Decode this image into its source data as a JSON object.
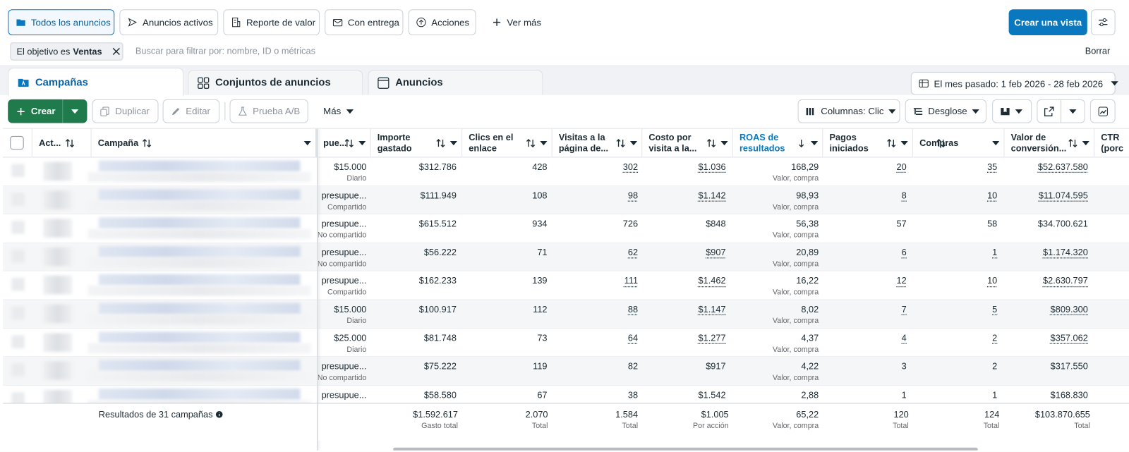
{
  "view_tabs": [
    "Todos los anuncios",
    "Anuncios activos",
    "Reporte de valor",
    "Con entrega",
    "Acciones",
    "Ver más"
  ],
  "create_view": "Crear una vista",
  "filter": {
    "chip_prefix": "El objetivo es",
    "chip_value": "Ventas",
    "placeholder": "Buscar para filtrar por: nombre, ID o métricas",
    "clear": "Borrar"
  },
  "level_tabs": [
    "Campañas",
    "Conjuntos de anuncios",
    "Anuncios"
  ],
  "date_range": "El mes pasado: 1 feb 2026 - 28 feb 2026",
  "toolbar": {
    "create": "Crear",
    "duplicate": "Duplicar",
    "edit": "Editar",
    "ab_test": "Prueba A/B",
    "more": "Más",
    "columns": "Columnas: Clic",
    "breakdown": "Desglose"
  },
  "table": {
    "columns": [
      "Act...",
      "Campaña",
      "pue...",
      "Importe gastado",
      "Clics en el enlace",
      "Visitas a la página de...",
      "Costo por visita a la...",
      "ROAS de resultados",
      "Pagos iniciados",
      "Compras",
      "Valor de conversión...",
      "CTR (porc"
    ],
    "rows": [
      {
        "budget": "$15.000",
        "budget_sub": "Diario",
        "spend": "$312.786",
        "clicks": "428",
        "visits": "302",
        "cost": "$1.036",
        "roas": "168,29",
        "roas_sub": "Valor, compra",
        "payments": "20",
        "purchases": "35",
        "value": "$52.637.580",
        "linked": true
      },
      {
        "budget": "presupue...",
        "budget_sub": "Compartido",
        "spend": "$111.949",
        "clicks": "108",
        "visits": "98",
        "cost": "$1.142",
        "roas": "98,93",
        "roas_sub": "Valor, compra",
        "payments": "8",
        "purchases": "10",
        "value": "$11.074.595",
        "linked": true
      },
      {
        "budget": "presupue...",
        "budget_sub": "No compartido",
        "spend": "$615.512",
        "clicks": "934",
        "visits": "726",
        "cost": "$848",
        "roas": "56,38",
        "roas_sub": "Valor, compra",
        "payments": "57",
        "purchases": "58",
        "value": "$34.700.621",
        "linked": false
      },
      {
        "budget": "presupue...",
        "budget_sub": "No compartido",
        "spend": "$56.222",
        "clicks": "71",
        "visits": "62",
        "cost": "$907",
        "roas": "20,89",
        "roas_sub": "Valor, compra",
        "payments": "6",
        "purchases": "1",
        "value": "$1.174.320",
        "linked": true
      },
      {
        "budget": "presupue...",
        "budget_sub": "Compartido",
        "spend": "$162.233",
        "clicks": "139",
        "visits": "111",
        "cost": "$1.462",
        "roas": "16,22",
        "roas_sub": "Valor, compra",
        "payments": "12",
        "purchases": "10",
        "value": "$2.630.797",
        "linked": true
      },
      {
        "budget": "$15.000",
        "budget_sub": "Diario",
        "spend": "$100.917",
        "clicks": "112",
        "visits": "88",
        "cost": "$1.147",
        "roas": "8,02",
        "roas_sub": "Valor, compra",
        "payments": "7",
        "purchases": "5",
        "value": "$809.300",
        "linked": true
      },
      {
        "budget": "$25.000",
        "budget_sub": "Diario",
        "spend": "$81.748",
        "clicks": "73",
        "visits": "64",
        "cost": "$1.277",
        "roas": "4,37",
        "roas_sub": "Valor, compra",
        "payments": "4",
        "purchases": "2",
        "value": "$357.062",
        "linked": true
      },
      {
        "budget": "presupue...",
        "budget_sub": "No compartido",
        "spend": "$75.222",
        "clicks": "119",
        "visits": "82",
        "cost": "$917",
        "roas": "4,22",
        "roas_sub": "Valor, compra",
        "payments": "3",
        "purchases": "2",
        "value": "$317.550",
        "linked": false
      },
      {
        "budget": "presupue...",
        "spend": "$58.580",
        "clicks": "67",
        "visits": "38",
        "cost": "$1.542",
        "roas": "2,88",
        "payments": "1",
        "purchases": "1",
        "value": "$168.830",
        "linked": false
      }
    ],
    "footer_label": "Resultados de 31 campañas",
    "totals": [
      {
        "value": "$1.592.617",
        "sub": "Gasto total"
      },
      {
        "value": "2.070",
        "sub": "Total"
      },
      {
        "value": "1.584",
        "sub": "Total"
      },
      {
        "value": "$1.005",
        "sub": "Por acción"
      },
      {
        "value": "65,22",
        "sub": "Valor, compra"
      },
      {
        "value": "120",
        "sub": "Total"
      },
      {
        "value": "124",
        "sub": "Total"
      },
      {
        "value": "$103.870.655",
        "sub": "Total"
      }
    ]
  }
}
